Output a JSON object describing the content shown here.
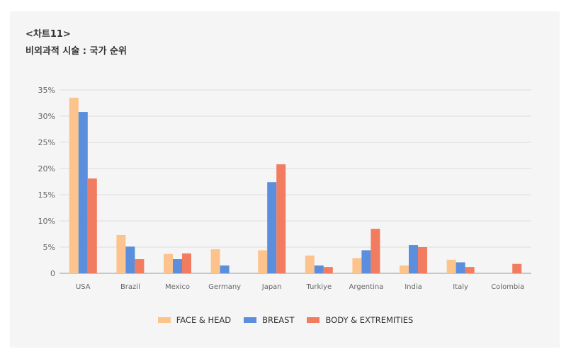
{
  "header": {
    "label": "<차트11>",
    "subtitle": "비외과적 시술 : 국가 순위"
  },
  "colors": {
    "face_head": "#fcc48c",
    "breast": "#5b8edc",
    "body_extremities": "#f27c5f",
    "grid": "#dddddd",
    "axis": "#999999"
  },
  "chart_data": {
    "type": "bar",
    "title": "비외과적 시술 : 국가 순위",
    "xlabel": "",
    "ylabel": "",
    "ylim": [
      0,
      35
    ],
    "y_ticks": [
      "0",
      "5%",
      "10%",
      "15%",
      "20%",
      "25%",
      "30%",
      "35%"
    ],
    "y_tick_values": [
      0,
      5,
      10,
      15,
      20,
      25,
      30,
      35
    ],
    "grid": true,
    "legend_position": "bottom",
    "categories": [
      "USA",
      "Brazil",
      "Mexico",
      "Germany",
      "Japan",
      "Turkiye",
      "Argentina",
      "India",
      "Italy",
      "Colombia"
    ],
    "series": [
      {
        "name": "FACE & HEAD",
        "color_key": "face_head",
        "values": [
          33.5,
          7.3,
          3.7,
          4.6,
          4.4,
          3.4,
          2.9,
          1.5,
          2.6,
          0
        ]
      },
      {
        "name": "BREAST",
        "color_key": "breast",
        "values": [
          30.8,
          5.1,
          2.7,
          1.5,
          17.4,
          1.5,
          4.4,
          5.4,
          2.1,
          0
        ]
      },
      {
        "name": "BODY & EXTREMITIES",
        "color_key": "body_extremities",
        "values": [
          18.1,
          2.7,
          3.8,
          0,
          20.8,
          1.2,
          8.5,
          5.0,
          1.2,
          1.8
        ]
      }
    ]
  }
}
